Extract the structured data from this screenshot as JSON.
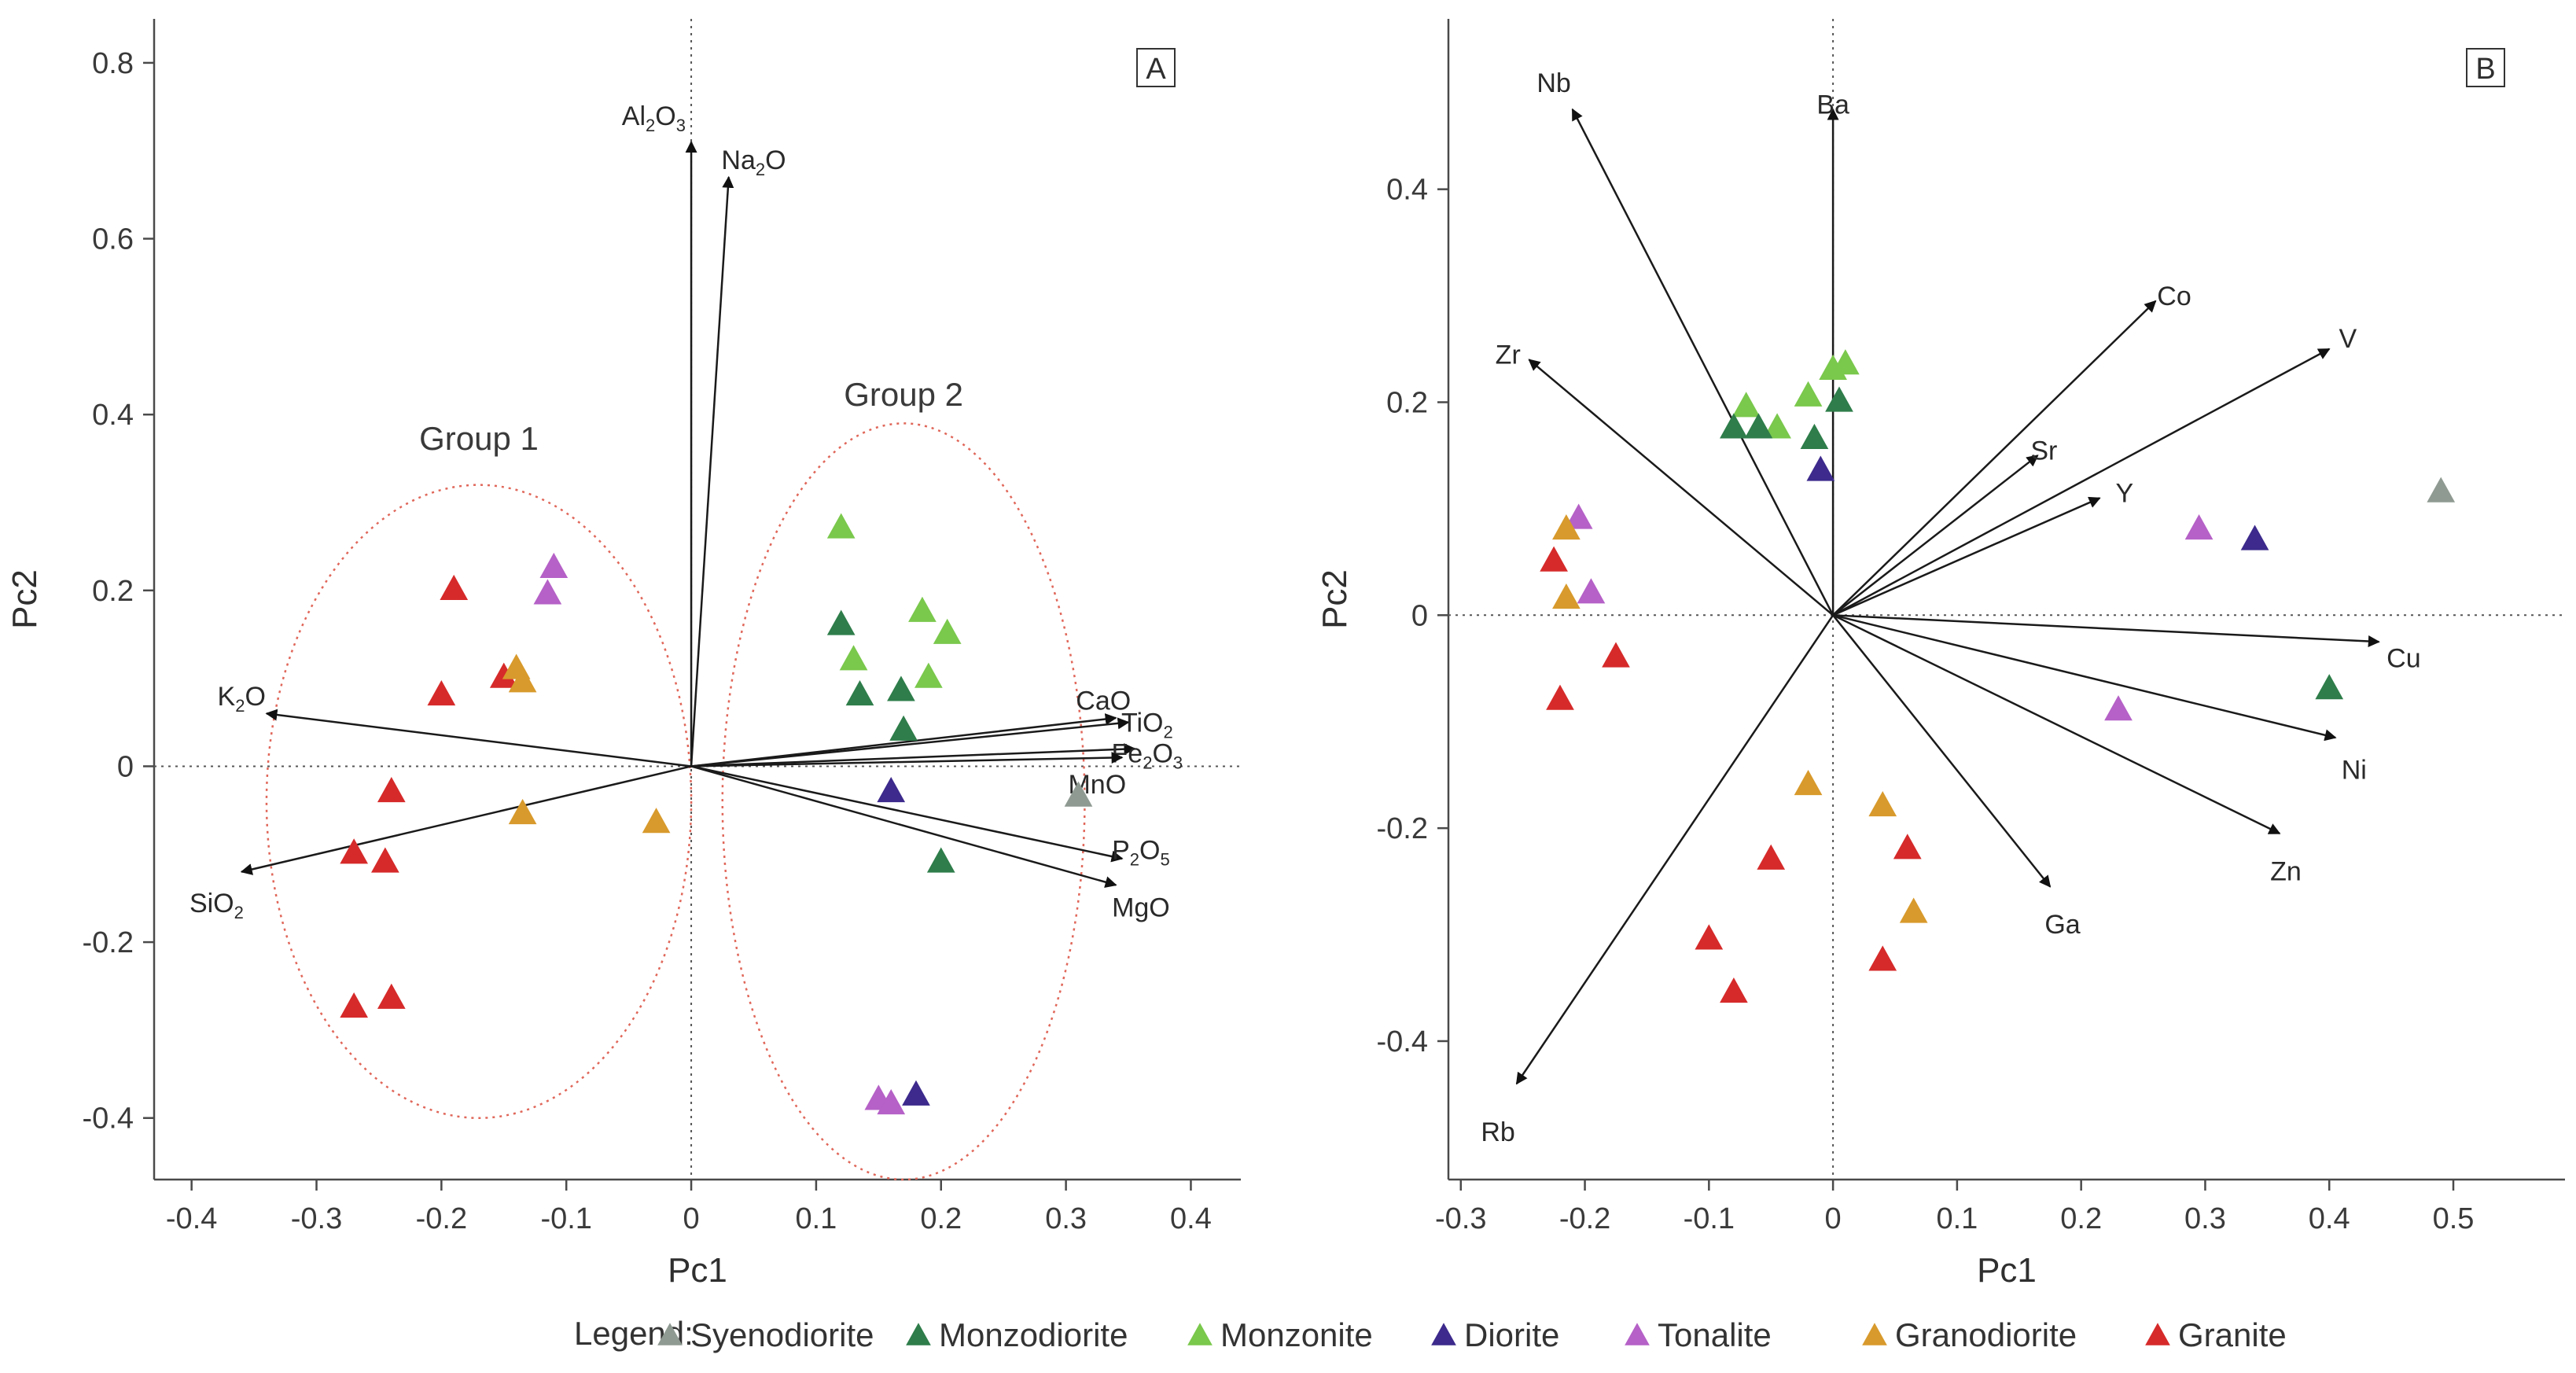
{
  "colors": {
    "Syenodiorite": "#8f9a92",
    "Monzodiorite": "#2e7d4a",
    "Monzonite": "#7ac84c",
    "Diorite": "#3d2a8c",
    "Tonalite": "#b561c7",
    "Granodiorite": "#d89a2c",
    "Granite": "#d62a2a",
    "ellipse": "#e0675a",
    "axis": "#4a4a4a",
    "arrow": "#1a1a1a"
  },
  "legend": {
    "title": "Legend:",
    "items": [
      {
        "label": "Syenodiorite",
        "color_key": "Syenodiorite"
      },
      {
        "label": "Monzodiorite",
        "color_key": "Monzodiorite"
      },
      {
        "label": "Monzonite",
        "color_key": "Monzonite"
      },
      {
        "label": "Diorite",
        "color_key": "Diorite"
      },
      {
        "label": "Tonalite",
        "color_key": "Tonalite"
      },
      {
        "label": "Granodiorite",
        "color_key": "Granodiorite"
      },
      {
        "label": "Granite",
        "color_key": "Granite"
      }
    ]
  },
  "chart_data": [
    {
      "type": "scatter",
      "panel_label": "A",
      "xlabel": "Pc1",
      "ylabel": "Pc2",
      "xlim": [
        -0.43,
        0.44
      ],
      "ylim": [
        -0.47,
        0.85
      ],
      "xticks": [
        -0.4,
        -0.3,
        -0.2,
        -0.1,
        0,
        0.1,
        0.2,
        0.3,
        0.4
      ],
      "xtick_labels": [
        "-0.4",
        "-0.3",
        "-0.2",
        "-0.1",
        "0",
        "0.1",
        "0.2",
        "0.3",
        "0.4"
      ],
      "yticks": [
        -0.4,
        -0.2,
        0,
        0.2,
        0.4,
        0.6,
        0.8
      ],
      "ytick_labels": [
        "-0.4",
        "-0.2",
        "0",
        "0.2",
        "0.4",
        "0.6",
        "0.8"
      ],
      "vectors": [
        {
          "label": "Al",
          "sub1": "2",
          "mid": "O",
          "sub2": "3",
          "x": 0.0,
          "y": 0.71,
          "lx": -0.03,
          "ly": 0.74
        },
        {
          "label": "Na",
          "sub1": "2",
          "mid": "O",
          "sub2": "",
          "x": 0.03,
          "y": 0.67,
          "lx": 0.05,
          "ly": 0.69
        },
        {
          "label": "K",
          "sub1": "2",
          "mid": "O",
          "sub2": "",
          "x": -0.34,
          "y": 0.06,
          "lx": -0.36,
          "ly": 0.08
        },
        {
          "label": "SiO",
          "sub1": "2",
          "mid": "",
          "sub2": "",
          "x": -0.36,
          "y": -0.12,
          "lx": -0.38,
          "ly": -0.155
        },
        {
          "label": "CaO",
          "sub1": "",
          "mid": "",
          "sub2": "",
          "x": 0.34,
          "y": 0.055,
          "lx": 0.33,
          "ly": 0.075
        },
        {
          "label": "TiO",
          "sub1": "2",
          "mid": "",
          "sub2": "",
          "x": 0.35,
          "y": 0.05,
          "lx": 0.365,
          "ly": 0.05
        },
        {
          "label": "Fe",
          "sub1": "2",
          "mid": "O",
          "sub2": "3",
          "x": 0.355,
          "y": 0.02,
          "lx": 0.365,
          "ly": 0.015
        },
        {
          "label": "MnO",
          "sub1": "",
          "mid": "",
          "sub2": "",
          "x": 0.345,
          "y": 0.01,
          "lx": 0.325,
          "ly": -0.02
        },
        {
          "label": "P",
          "sub1": "2",
          "mid": "O",
          "sub2": "5",
          "x": 0.345,
          "y": -0.105,
          "lx": 0.36,
          "ly": -0.095
        },
        {
          "label": "MgO",
          "sub1": "",
          "mid": "",
          "sub2": "",
          "x": 0.34,
          "y": -0.135,
          "lx": 0.36,
          "ly": -0.16
        }
      ],
      "points": [
        {
          "group": "Granite",
          "x": -0.19,
          "y": 0.2
        },
        {
          "group": "Granite",
          "x": -0.2,
          "y": 0.08
        },
        {
          "group": "Granite",
          "x": -0.15,
          "y": 0.1
        },
        {
          "group": "Granite",
          "x": -0.24,
          "y": -0.03
        },
        {
          "group": "Granite",
          "x": -0.27,
          "y": -0.1
        },
        {
          "group": "Granite",
          "x": -0.245,
          "y": -0.11
        },
        {
          "group": "Granite",
          "x": -0.27,
          "y": -0.275
        },
        {
          "group": "Granite",
          "x": -0.24,
          "y": -0.265
        },
        {
          "group": "Granodiorite",
          "x": -0.14,
          "y": 0.11
        },
        {
          "group": "Granodiorite",
          "x": -0.135,
          "y": 0.095
        },
        {
          "group": "Granodiorite",
          "x": -0.135,
          "y": -0.055
        },
        {
          "group": "Granodiorite",
          "x": -0.028,
          "y": -0.065
        },
        {
          "group": "Tonalite",
          "x": -0.11,
          "y": 0.225
        },
        {
          "group": "Tonalite",
          "x": -0.115,
          "y": 0.195
        },
        {
          "group": "Tonalite",
          "x": 0.15,
          "y": -0.38
        },
        {
          "group": "Tonalite",
          "x": 0.16,
          "y": -0.385
        },
        {
          "group": "Diorite",
          "x": 0.18,
          "y": -0.375
        },
        {
          "group": "Diorite",
          "x": 0.16,
          "y": -0.03
        },
        {
          "group": "Monzonite",
          "x": 0.12,
          "y": 0.27
        },
        {
          "group": "Monzonite",
          "x": 0.13,
          "y": 0.12
        },
        {
          "group": "Monzonite",
          "x": 0.185,
          "y": 0.175
        },
        {
          "group": "Monzonite",
          "x": 0.205,
          "y": 0.15
        },
        {
          "group": "Monzonite",
          "x": 0.19,
          "y": 0.1
        },
        {
          "group": "Monzodiorite",
          "x": 0.12,
          "y": 0.16
        },
        {
          "group": "Monzodiorite",
          "x": 0.135,
          "y": 0.08
        },
        {
          "group": "Monzodiorite",
          "x": 0.168,
          "y": 0.085
        },
        {
          "group": "Monzodiorite",
          "x": 0.17,
          "y": 0.04
        },
        {
          "group": "Monzodiorite",
          "x": 0.2,
          "y": -0.11
        },
        {
          "group": "Syenodiorite",
          "x": 0.31,
          "y": -0.035
        }
      ],
      "ellipses": [
        {
          "label": "Group 1",
          "cx": -0.17,
          "cy": -0.04,
          "rx": 0.17,
          "ry": 0.36,
          "lx": -0.17,
          "ly": 0.36
        },
        {
          "label": "Group 2",
          "cx": 0.17,
          "cy": -0.04,
          "rx": 0.145,
          "ry": 0.43,
          "lx": 0.17,
          "ly": 0.41
        }
      ]
    },
    {
      "type": "scatter",
      "panel_label": "B",
      "xlabel": "Pc1",
      "ylabel": "Pc2",
      "xlim": [
        -0.31,
        0.59
      ],
      "ylim": [
        -0.53,
        0.56
      ],
      "xticks": [
        -0.3,
        -0.2,
        -0.1,
        0,
        0.1,
        0.2,
        0.3,
        0.4,
        0.5
      ],
      "xtick_labels": [
        "-0.3",
        "-0.2",
        "-0.1",
        "0",
        "0.1",
        "0.2",
        "0.3",
        "0.4",
        "0.5"
      ],
      "yticks": [
        -0.4,
        -0.2,
        0,
        0.2,
        0.4
      ],
      "ytick_labels": [
        "-0.4",
        "-0.2",
        "0",
        "0.2",
        "0.4"
      ],
      "vectors": [
        {
          "label": "Nb",
          "sub1": "",
          "mid": "",
          "sub2": "",
          "x": -0.21,
          "y": 0.475,
          "lx": -0.225,
          "ly": 0.5
        },
        {
          "label": "Ba",
          "sub1": "",
          "mid": "",
          "sub2": "",
          "x": 0.0,
          "y": 0.475,
          "lx": 0.0,
          "ly": 0.48
        },
        {
          "label": "Zr",
          "sub1": "",
          "mid": "",
          "sub2": "",
          "x": -0.245,
          "y": 0.24,
          "lx": -0.262,
          "ly": 0.245
        },
        {
          "label": "Co",
          "sub1": "",
          "mid": "",
          "sub2": "",
          "x": 0.26,
          "y": 0.295,
          "lx": 0.275,
          "ly": 0.3
        },
        {
          "label": "V",
          "sub1": "",
          "mid": "",
          "sub2": "",
          "x": 0.4,
          "y": 0.25,
          "lx": 0.415,
          "ly": 0.26
        },
        {
          "label": "Sr",
          "sub1": "",
          "mid": "",
          "sub2": "",
          "x": 0.165,
          "y": 0.15,
          "lx": 0.17,
          "ly": 0.155
        },
        {
          "label": "Y",
          "sub1": "",
          "mid": "",
          "sub2": "",
          "x": 0.215,
          "y": 0.11,
          "lx": 0.235,
          "ly": 0.115
        },
        {
          "label": "Cu",
          "sub1": "",
          "mid": "",
          "sub2": "",
          "x": 0.44,
          "y": -0.025,
          "lx": 0.46,
          "ly": -0.04
        },
        {
          "label": "Ni",
          "sub1": "",
          "mid": "",
          "sub2": "",
          "x": 0.405,
          "y": -0.115,
          "lx": 0.42,
          "ly": -0.145
        },
        {
          "label": "Zn",
          "sub1": "",
          "mid": "",
          "sub2": "",
          "x": 0.36,
          "y": -0.205,
          "lx": 0.365,
          "ly": -0.24
        },
        {
          "label": "Ga",
          "sub1": "",
          "mid": "",
          "sub2": "",
          "x": 0.175,
          "y": -0.255,
          "lx": 0.185,
          "ly": -0.29
        },
        {
          "label": "Rb",
          "sub1": "",
          "mid": "",
          "sub2": "",
          "x": -0.255,
          "y": -0.44,
          "lx": -0.27,
          "ly": -0.485
        }
      ],
      "points": [
        {
          "group": "Monzonite",
          "x": -0.07,
          "y": 0.195
        },
        {
          "group": "Monzonite",
          "x": -0.045,
          "y": 0.175
        },
        {
          "group": "Monzonite",
          "x": -0.02,
          "y": 0.205
        },
        {
          "group": "Monzonite",
          "x": 0.0,
          "y": 0.23
        },
        {
          "group": "Monzonite",
          "x": 0.01,
          "y": 0.235
        },
        {
          "group": "Monzodiorite",
          "x": -0.08,
          "y": 0.175
        },
        {
          "group": "Monzodiorite",
          "x": -0.06,
          "y": 0.175
        },
        {
          "group": "Monzodiorite",
          "x": -0.015,
          "y": 0.165
        },
        {
          "group": "Monzodiorite",
          "x": 0.005,
          "y": 0.2
        },
        {
          "group": "Monzodiorite",
          "x": 0.4,
          "y": -0.07
        },
        {
          "group": "Diorite",
          "x": -0.01,
          "y": 0.135
        },
        {
          "group": "Diorite",
          "x": 0.34,
          "y": 0.07
        },
        {
          "group": "Tonalite",
          "x": -0.205,
          "y": 0.09
        },
        {
          "group": "Tonalite",
          "x": -0.195,
          "y": 0.02
        },
        {
          "group": "Tonalite",
          "x": 0.295,
          "y": 0.08
        },
        {
          "group": "Tonalite",
          "x": 0.23,
          "y": -0.09
        },
        {
          "group": "Granodiorite",
          "x": -0.215,
          "y": 0.08
        },
        {
          "group": "Granodiorite",
          "x": -0.215,
          "y": 0.015
        },
        {
          "group": "Granodiorite",
          "x": -0.02,
          "y": -0.16
        },
        {
          "group": "Granodiorite",
          "x": 0.04,
          "y": -0.18
        },
        {
          "group": "Granodiorite",
          "x": 0.065,
          "y": -0.28
        },
        {
          "group": "Granite",
          "x": -0.225,
          "y": 0.05
        },
        {
          "group": "Granite",
          "x": -0.175,
          "y": -0.04
        },
        {
          "group": "Granite",
          "x": -0.22,
          "y": -0.08
        },
        {
          "group": "Granite",
          "x": -0.05,
          "y": -0.23
        },
        {
          "group": "Granite",
          "x": 0.06,
          "y": -0.22
        },
        {
          "group": "Granite",
          "x": -0.1,
          "y": -0.305
        },
        {
          "group": "Granite",
          "x": -0.08,
          "y": -0.355
        },
        {
          "group": "Granite",
          "x": 0.04,
          "y": -0.325
        },
        {
          "group": "Syenodiorite",
          "x": 0.49,
          "y": 0.115
        }
      ],
      "ellipses": []
    }
  ]
}
